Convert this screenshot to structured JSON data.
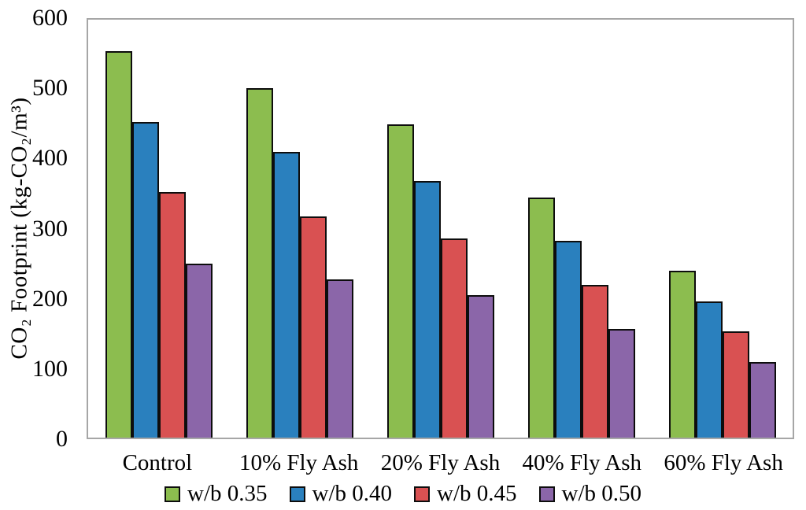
{
  "chart_data": {
    "type": "bar",
    "title": "",
    "xlabel": "",
    "ylabel": "CO₂ Footprint (kg-CO₂/m³)",
    "ylim": [
      0,
      600
    ],
    "ytick_step": 100,
    "grid": false,
    "legend_position": "bottom",
    "categories": [
      "Control",
      "10% Fly Ash",
      "20% Fly Ash",
      "40% Fly Ash",
      "60% Fly Ash"
    ],
    "series": [
      {
        "name": "w/b 0.35",
        "color": "#8CBD4F",
        "values": [
          555,
          502,
          450,
          345,
          240
        ]
      },
      {
        "name": "w/b 0.40",
        "color": "#2A80BE",
        "values": [
          453,
          410,
          368,
          282,
          196
        ]
      },
      {
        "name": "w/b 0.45",
        "color": "#D95152",
        "values": [
          352,
          318,
          286,
          219,
          153
        ]
      },
      {
        "name": "w/b 0.50",
        "color": "#8B66A9",
        "values": [
          250,
          227,
          204,
          156,
          108
        ]
      }
    ],
    "colors": {
      "bar_border": "#0D0D0D",
      "plot_border": "#A6A6A6",
      "text": "#000000",
      "background": "#FFFFFF"
    }
  }
}
